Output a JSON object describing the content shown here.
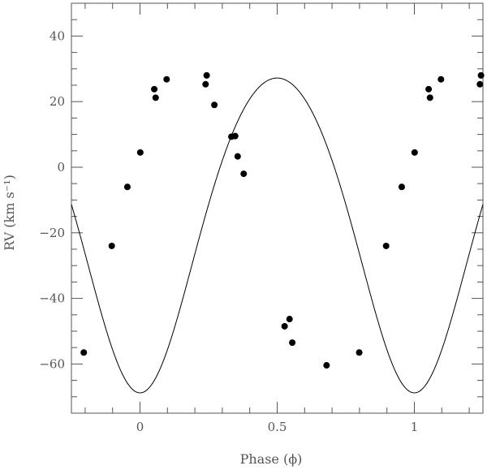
{
  "chart_data": {
    "type": "scatter",
    "title": "",
    "xlabel": "Phase (ϕ)",
    "ylabel": "RV (km s⁻¹)",
    "xlim": [
      -0.25,
      1.25
    ],
    "ylim": [
      -75,
      50
    ],
    "x_ticks": [
      0,
      0.5,
      1
    ],
    "x_tick_labels": [
      "0",
      "0.5",
      "1"
    ],
    "y_ticks": [
      40,
      20,
      0,
      -20,
      -40,
      -60
    ],
    "y_tick_labels": [
      "40",
      "20",
      "0",
      "−20",
      "−40",
      "−60"
    ],
    "grid": false,
    "legend": "none",
    "series": [
      {
        "kind": "points",
        "x": [
          -0.205,
          -0.103,
          -0.046,
          0.001,
          0.052,
          0.057,
          0.097,
          0.239,
          0.243,
          0.271,
          0.333,
          0.347,
          0.356,
          0.378,
          0.527,
          0.545,
          0.555,
          0.68,
          0.799,
          0.897,
          0.954,
          1.001,
          1.052,
          1.057,
          1.097,
          1.239,
          1.243
        ],
        "y": [
          -56.5,
          -24.0,
          -6.0,
          4.5,
          23.8,
          21.2,
          26.8,
          25.3,
          28.0,
          19.0,
          9.3,
          9.5,
          3.3,
          -2.0,
          -48.5,
          -46.3,
          -53.5,
          -60.4,
          -56.5,
          -24.0,
          -6.0,
          4.5,
          23.8,
          21.2,
          26.8,
          25.3,
          28.0
        ]
      },
      {
        "kind": "model-curve",
        "gamma": -16,
        "amplitude": 48,
        "eccentricity": 0.1,
        "omega_deg": 180,
        "periastron_phase": 0.0
      }
    ],
    "colors": {
      "points": "#000000",
      "curve": "#000000",
      "frame": "#555555"
    }
  }
}
